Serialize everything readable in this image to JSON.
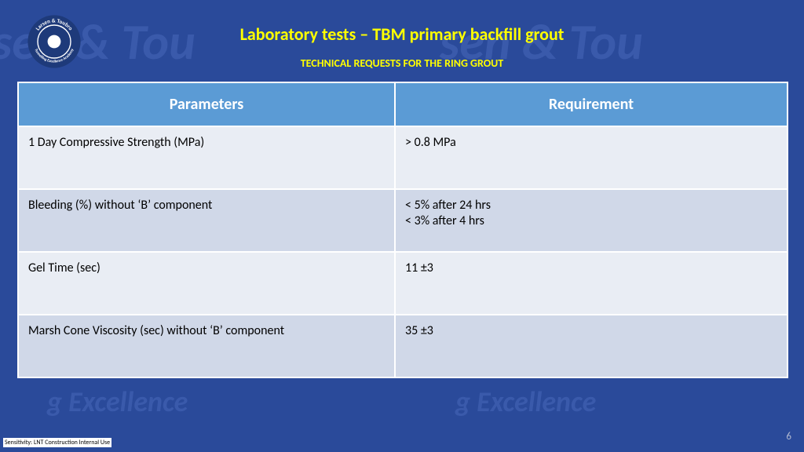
{
  "background_color": "#2a4a9a",
  "logo": {
    "outer_color": "#1e3a7a",
    "ring_color": "#ffffff",
    "top_text": "Larsen & Toubro",
    "bottom_text": "Tunnelling Excellence Academy",
    "text_color": "#ffffff"
  },
  "title": {
    "text": "Laboratory tests – TBM primary backfill grout",
    "color": "#ffff00",
    "fontsize": 22
  },
  "subtitle": {
    "text": "TECHNICAL REQUESTS FOR THE RING GROUT",
    "color": "#ffff00",
    "fontsize": 14
  },
  "watermark": {
    "color": "#3a5aab",
    "large_text": "sen & Tou",
    "small_text": "g Excellence",
    "large_fontsize": 64,
    "small_fontsize": 36
  },
  "table": {
    "header_bg": "#5b9bd5",
    "header_text_color": "#ffffff",
    "header_fontsize": 20,
    "border_color": "#ffffff",
    "row_odd_bg": "#e9edf4",
    "row_even_bg": "#d0d8e8",
    "cell_text_color": "#000000",
    "cell_fontsize": 16,
    "col1_width": 480,
    "col2_width": 500,
    "columns": [
      "Parameters",
      "Requirement"
    ],
    "rows": [
      [
        "1 Day Compressive Strength (MPa)",
        "> 0.8 MPa"
      ],
      [
        "Bleeding (%) without ‘B’ component",
        "< 5% after 24 hrs\n< 3% after 4 hrs"
      ],
      [
        "Gel Time (sec)",
        "11 ±3"
      ],
      [
        "Marsh Cone Viscosity (sec) without ‘B’ component",
        "35 ±3"
      ]
    ]
  },
  "page_number": {
    "text": "6",
    "color": "#b0b8d0",
    "fontsize": 13
  },
  "sensitivity": {
    "text": "Sensitivity: LNT Construction Internal Use",
    "color": "#000000",
    "bg": "#ffffff",
    "fontsize": 8
  }
}
